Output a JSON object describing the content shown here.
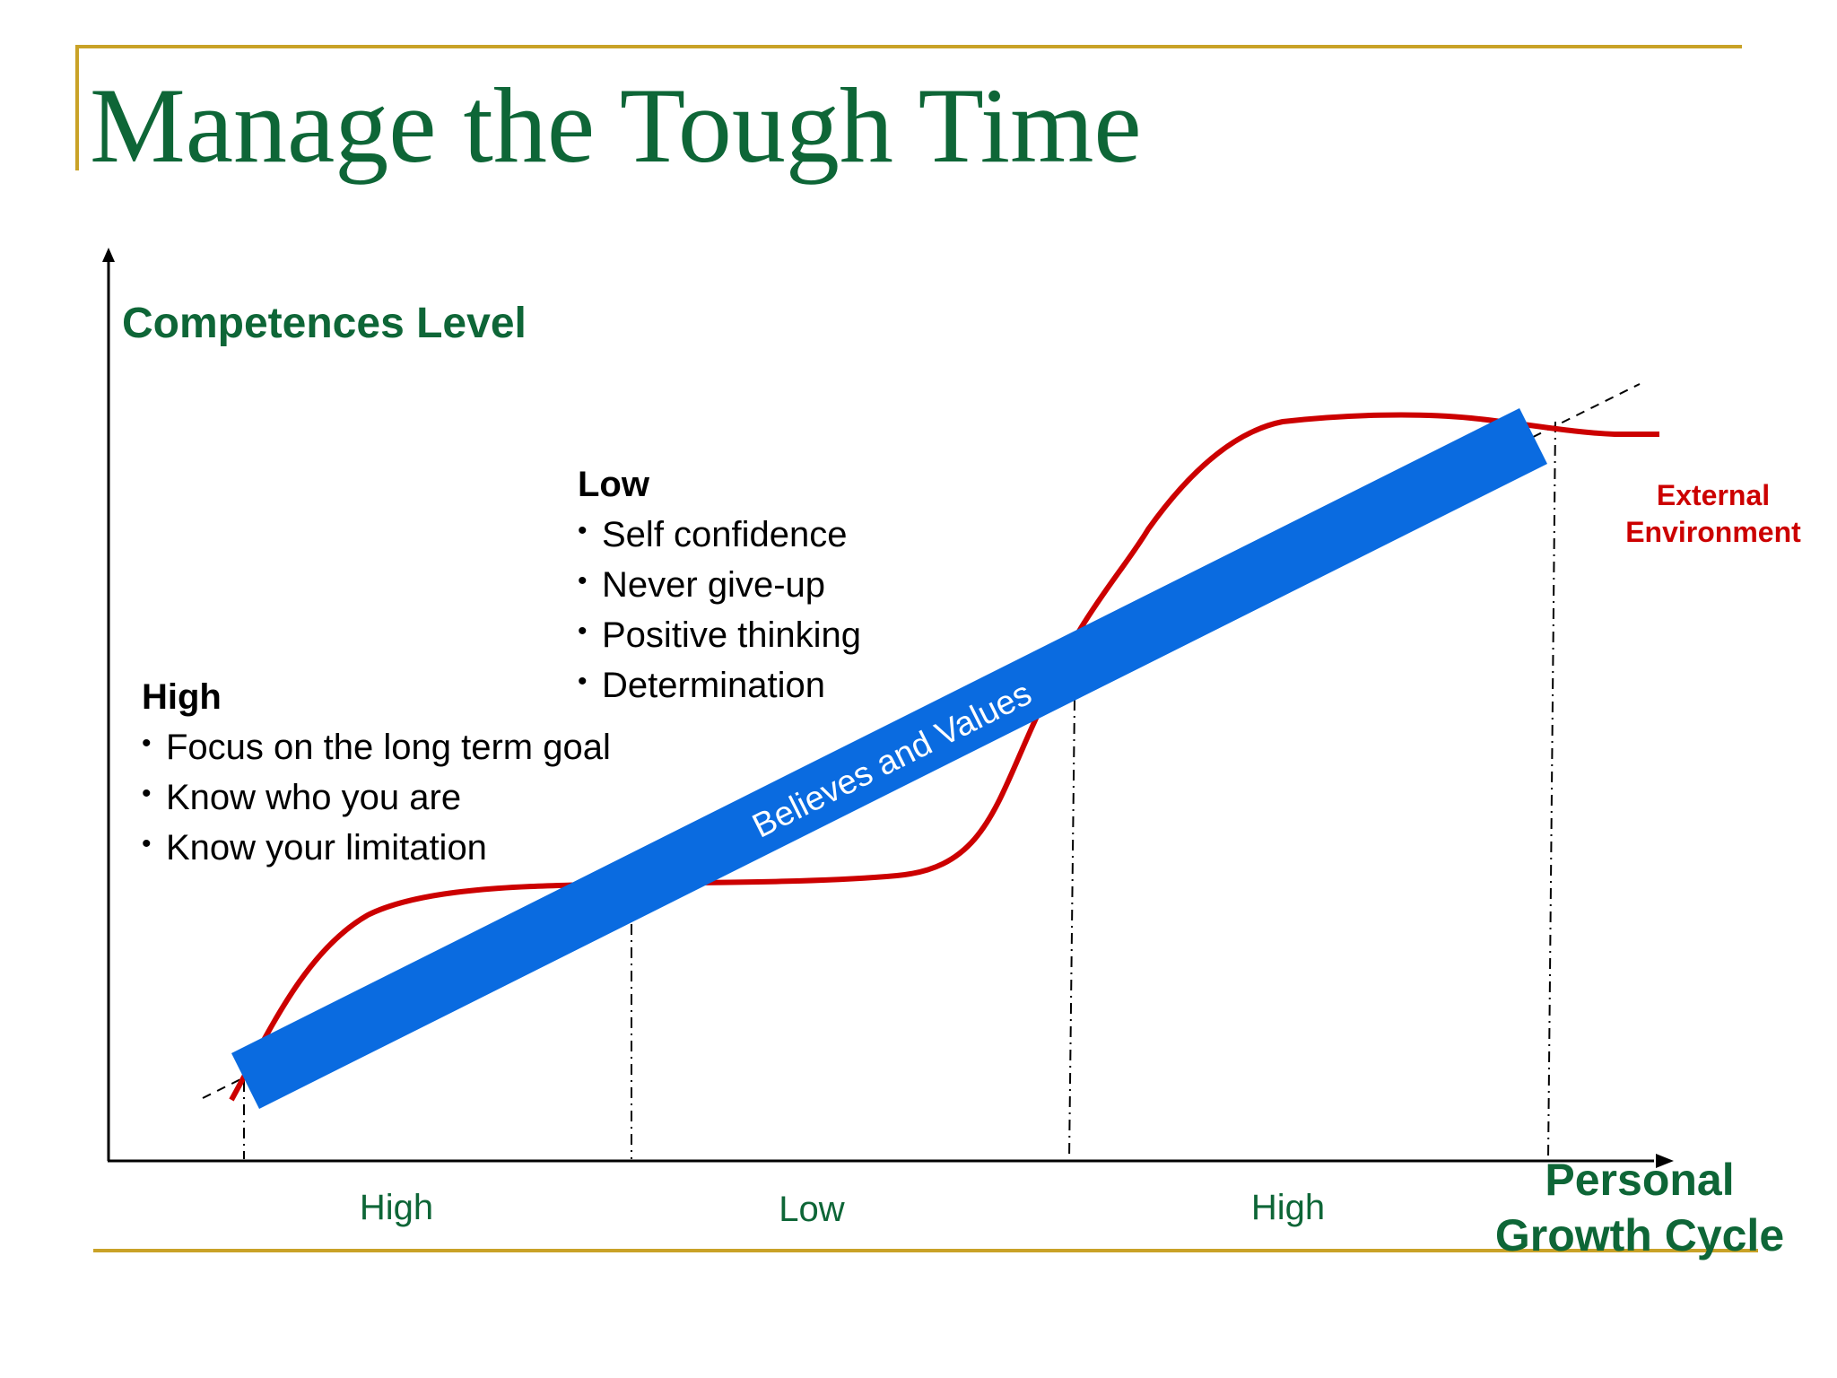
{
  "title": "Manage the Tough Time",
  "y_axis_label": "Competences Level",
  "x_axis_label": {
    "line1": "Personal",
    "line2": "Growth Cycle"
  },
  "phase_labels": [
    "High",
    "Low",
    "High"
  ],
  "band_label": "Believes and Values",
  "curve_label": {
    "line1": "External",
    "line2": "Environment"
  },
  "high_box": {
    "heading": "High",
    "items": [
      "Focus on the long term goal",
      "Know who you are",
      "Know your limitation"
    ]
  },
  "low_box": {
    "heading": "Low",
    "items": [
      "Self confidence",
      "Never give-up",
      "Positive thinking",
      "Determination"
    ]
  },
  "colors": {
    "title": "#0e6637",
    "axis_text": "#0e6637",
    "rule": "#c9a227",
    "curve": "#cc0000",
    "band": "#0a6be0",
    "band_text": "#ffffff",
    "axis": "#000000"
  }
}
